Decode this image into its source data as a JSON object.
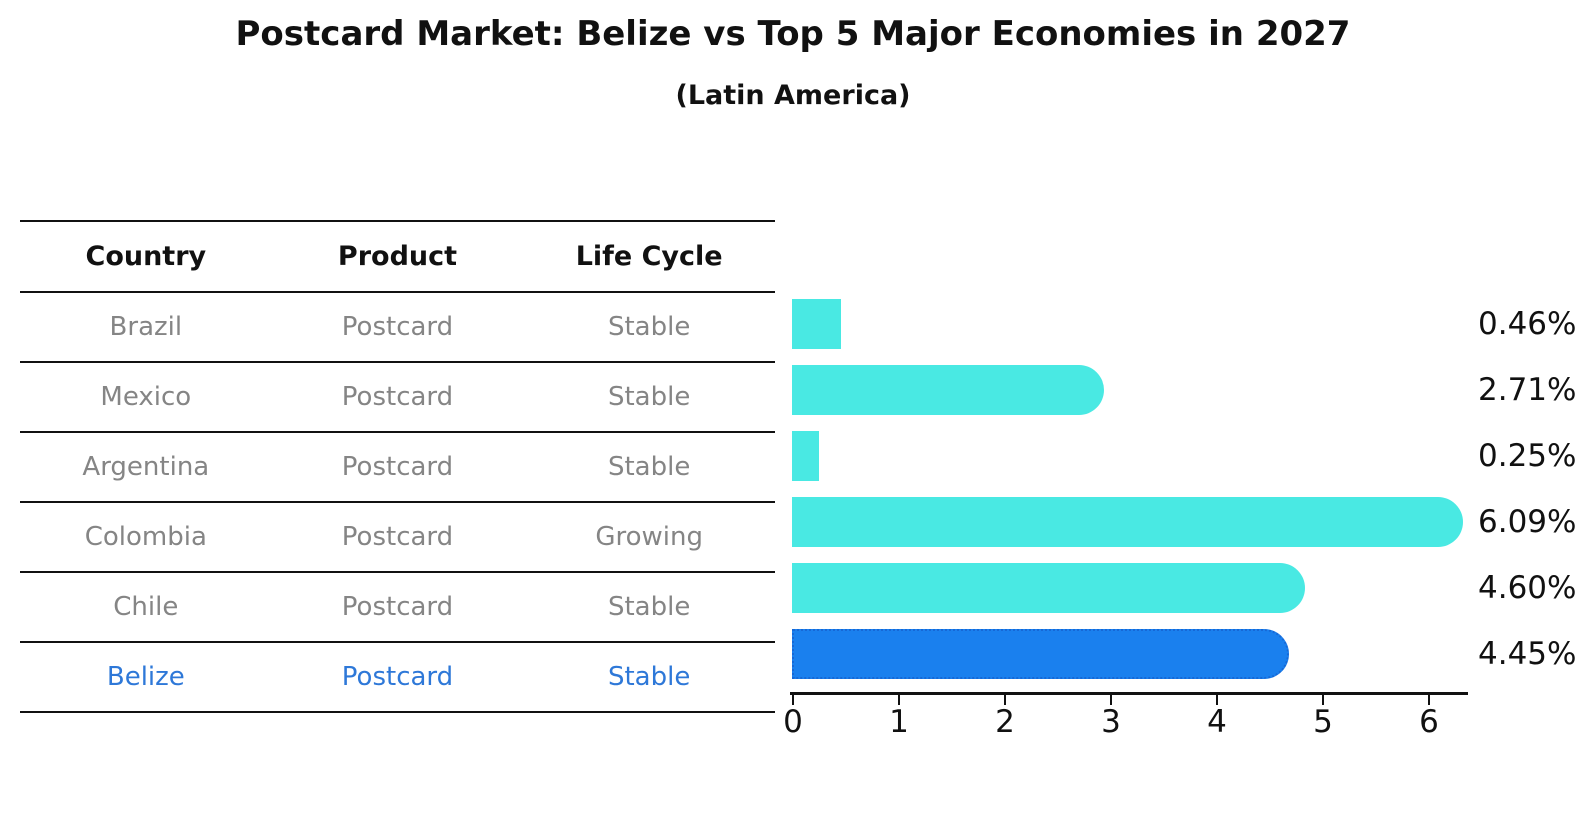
{
  "title": "Postcard Market: Belize vs Top 5 Major Economies in 2027",
  "subtitle": "(Latin America)",
  "table": {
    "headers": [
      "Country",
      "Product",
      "Life Cycle"
    ],
    "rows": [
      {
        "country": "Brazil",
        "product": "Postcard",
        "life_cycle": "Stable",
        "highlight": false
      },
      {
        "country": "Mexico",
        "product": "Postcard",
        "life_cycle": "Stable",
        "highlight": false
      },
      {
        "country": "Argentina",
        "product": "Postcard",
        "life_cycle": "Stable",
        "highlight": false
      },
      {
        "country": "Colombia",
        "product": "Postcard",
        "life_cycle": "Growing",
        "highlight": false
      },
      {
        "country": "Chile",
        "product": "Postcard",
        "life_cycle": "Stable",
        "highlight": false
      },
      {
        "country": "Belize",
        "product": "Postcard",
        "life_cycle": "Stable",
        "highlight": true
      }
    ]
  },
  "chart_data": {
    "type": "bar",
    "orientation": "horizontal",
    "title": "Postcard Market: Belize vs Top 5 Major Economies in 2027",
    "subtitle": "(Latin America)",
    "categories": [
      "Brazil",
      "Mexico",
      "Argentina",
      "Colombia",
      "Chile",
      "Belize"
    ],
    "values": [
      0.46,
      2.71,
      0.25,
      6.09,
      4.6,
      4.45
    ],
    "value_labels": [
      "0.46%",
      "2.71%",
      "0.25%",
      "6.09%",
      "4.60%",
      "4.45%"
    ],
    "x_ticks": [
      "0",
      "1",
      "2",
      "3",
      "4",
      "5",
      "6"
    ],
    "xlim": [
      0,
      6.4
    ],
    "grid": false,
    "legend": false,
    "bar_color": "#49E9E3",
    "highlight_index": 5,
    "highlight_bar_color": "#1A80EE",
    "highlight_border_color": "#1668D6",
    "highlight_text_color": "#2E78D8",
    "axis_color": "#111111",
    "text_color": "#111111",
    "muted_text_color": "#858585"
  }
}
